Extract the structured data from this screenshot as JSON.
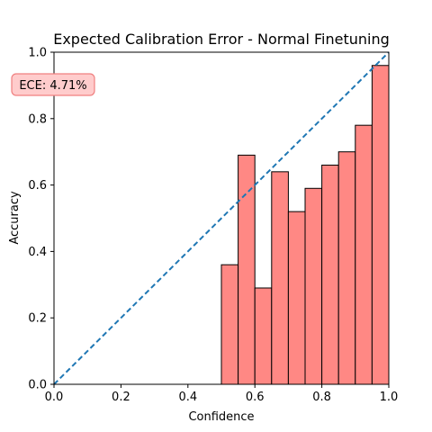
{
  "chart_data": {
    "type": "bar",
    "title": "Expected Calibration Error - Normal Finetuning",
    "xlabel": "Confidence",
    "ylabel": "Accuracy",
    "xlim": [
      0,
      1
    ],
    "ylim": [
      0,
      1
    ],
    "xticks": [
      "0.0",
      "0.2",
      "0.4",
      "0.6",
      "0.8",
      "1.0"
    ],
    "yticks": [
      "0.0",
      "0.2",
      "0.4",
      "0.6",
      "0.8",
      "1.0"
    ],
    "grid": false,
    "bin_width": 0.05,
    "bins": [
      {
        "x_start": 0.5,
        "accuracy": 0.36
      },
      {
        "x_start": 0.55,
        "accuracy": 0.69
      },
      {
        "x_start": 0.6,
        "accuracy": 0.29
      },
      {
        "x_start": 0.65,
        "accuracy": 0.64
      },
      {
        "x_start": 0.7,
        "accuracy": 0.52
      },
      {
        "x_start": 0.75,
        "accuracy": 0.59
      },
      {
        "x_start": 0.8,
        "accuracy": 0.66
      },
      {
        "x_start": 0.85,
        "accuracy": 0.7
      },
      {
        "x_start": 0.9,
        "accuracy": 0.78
      },
      {
        "x_start": 0.95,
        "accuracy": 0.96
      }
    ],
    "reference_line": {
      "from": [
        0,
        0
      ],
      "to": [
        1,
        1
      ]
    },
    "annotation": "ECE: 4.71%",
    "colors": {
      "bar_fill": "#ff8884",
      "bar_edge": "#000000",
      "diagonal": "#1f77b4",
      "annotation_bg": "#ffcccc",
      "annotation_edge": "#f08080"
    }
  }
}
